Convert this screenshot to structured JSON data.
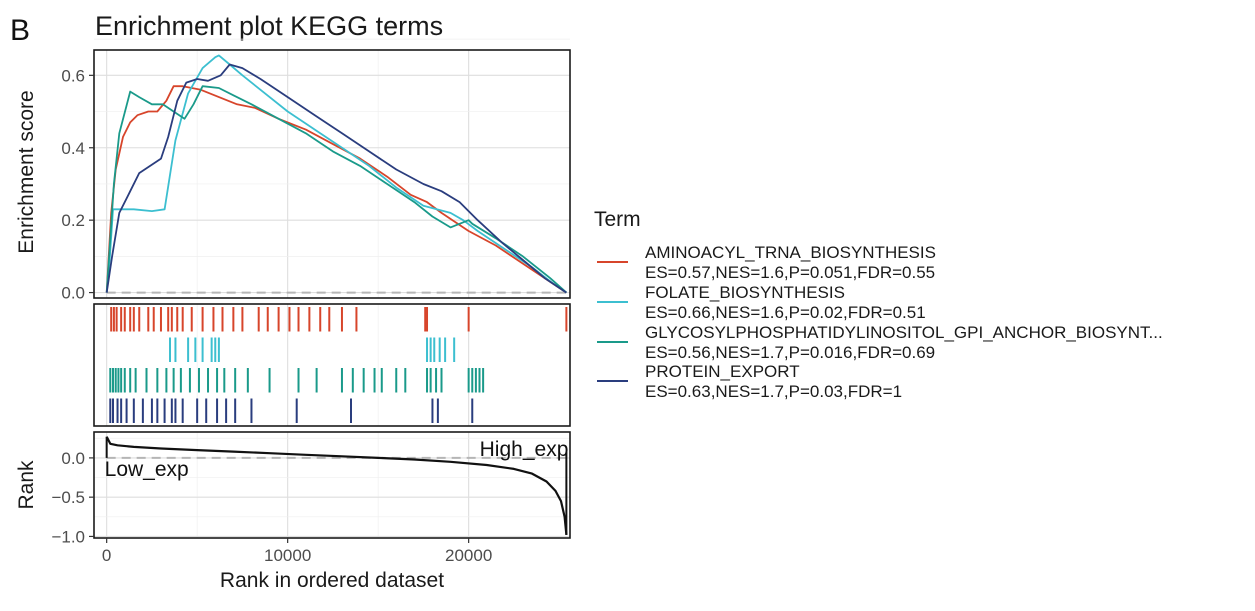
{
  "figure": {
    "panel_letter": "B",
    "title": "Enrichment plot KEGG terms"
  },
  "legend": {
    "title": "Term",
    "entries": [
      {
        "name": "AMINOACYL_TRNA_BIOSYNTHESIS",
        "stats": "ES=0.57,NES=1.6,P=0.051,FDR=0.55",
        "color": "#d7452b"
      },
      {
        "name": "FOLATE_BIOSYNTHESIS",
        "stats": "ES=0.66,NES=1.6,P=0.02,FDR=0.51",
        "color": "#3cbfd0"
      },
      {
        "name": "GLYCOSYLPHOSPHATIDYLINOSITOL_GPI_ANCHOR_BIOSYNT...",
        "stats": "ES=0.56,NES=1.7,P=0.016,FDR=0.69",
        "color": "#1a9a8a"
      },
      {
        "name": "PROTEIN_EXPORT",
        "stats": "ES=0.63,NES=1.7,P=0.03,FDR=1",
        "color": "#2a3d7e"
      }
    ]
  },
  "chart_data": {
    "type": "line",
    "xlabel": "Rank in ordered dataset",
    "xlim": [
      -700,
      25600
    ],
    "xticks": [
      0,
      10000,
      20000
    ],
    "xtick_labels": [
      "0",
      "10000",
      "20000"
    ],
    "grid": true,
    "legend_position": "right",
    "panels": {
      "enrichment": {
        "ylabel": "Enrichment score",
        "ylim": [
          -0.015,
          0.67
        ],
        "yticks": [
          0,
          0.2,
          0.4,
          0.6
        ],
        "ytick_labels": [
          "0.0",
          "0.2",
          "0.4",
          "0.6"
        ],
        "baseline": 0
      },
      "hits": {},
      "rank": {
        "ylabel": "Rank",
        "ylim": [
          -1.02,
          0.33
        ],
        "yticks": [
          0,
          -0.5,
          -1
        ],
        "ytick_labels": [
          "0.0",
          "−0.5",
          "−1.0"
        ],
        "baseline": 0,
        "annotations": [
          {
            "text": "Low_exp",
            "x": 0,
            "y": 0
          },
          {
            "text": "High_exp",
            "x": 25400,
            "y": 0
          }
        ]
      }
    },
    "series": [
      {
        "name": "AMINOACYL_TRNA_BIOSYNTHESIS",
        "color": "#d7452b",
        "x": [
          0,
          250,
          500,
          900,
          1300,
          1700,
          2300,
          2800,
          3300,
          3700,
          4200,
          5200,
          6200,
          7200,
          8200,
          9500,
          11000,
          12500,
          14000,
          15500,
          16800,
          17700,
          18500,
          20000,
          21500,
          23000,
          24500,
          25400
        ],
        "y": [
          0.0,
          0.22,
          0.34,
          0.43,
          0.47,
          0.49,
          0.5,
          0.5,
          0.53,
          0.57,
          0.57,
          0.56,
          0.54,
          0.52,
          0.51,
          0.48,
          0.45,
          0.41,
          0.37,
          0.32,
          0.27,
          0.25,
          0.22,
          0.17,
          0.13,
          0.08,
          0.03,
          0.0
        ],
        "hits": [
          250,
          400,
          550,
          800,
          1000,
          1300,
          1500,
          1800,
          2300,
          2600,
          3000,
          3400,
          3600,
          3900,
          4200,
          4700,
          5300,
          5900,
          6400,
          7000,
          7500,
          8400,
          8900,
          9500,
          10100,
          10600,
          11200,
          11800,
          12300,
          13000,
          13800,
          17600,
          17700,
          20000,
          25400
        ]
      },
      {
        "name": "FOLATE_BIOSYNTHESIS",
        "color": "#3cbfd0",
        "x": [
          0,
          180,
          350,
          700,
          1500,
          2500,
          3200,
          3800,
          4500,
          5300,
          6000,
          6200,
          6800,
          7500,
          8500,
          10000,
          11500,
          13000,
          14500,
          16000,
          17500,
          19000,
          19700,
          20500,
          22000,
          23500,
          24800,
          25400
        ],
        "y": [
          0.0,
          0.1,
          0.23,
          0.23,
          0.23,
          0.225,
          0.23,
          0.42,
          0.55,
          0.62,
          0.65,
          0.655,
          0.63,
          0.6,
          0.56,
          0.5,
          0.45,
          0.4,
          0.35,
          0.29,
          0.24,
          0.22,
          0.2,
          0.17,
          0.12,
          0.07,
          0.02,
          0.0
        ],
        "hits": [
          3500,
          3800,
          4500,
          4900,
          5300,
          5800,
          6000,
          6200,
          17700,
          17900,
          18100,
          18400,
          18700,
          19200
        ]
      },
      {
        "name": "GLYCOSYLPHOSPHATIDYLINOSITOL_GPI_ANCHOR_BIOSYNT...",
        "color": "#1a9a8a",
        "x": [
          0,
          200,
          400,
          700,
          1300,
          1800,
          2500,
          3100,
          3700,
          4300,
          4800,
          5300,
          6200,
          7000,
          8000,
          9500,
          11000,
          12500,
          14000,
          15500,
          17000,
          18000,
          19000,
          20000,
          20200,
          21500,
          23000,
          24500,
          25400
        ],
        "y": [
          0.0,
          0.15,
          0.3,
          0.44,
          0.555,
          0.54,
          0.52,
          0.52,
          0.5,
          0.48,
          0.52,
          0.57,
          0.565,
          0.545,
          0.52,
          0.48,
          0.44,
          0.39,
          0.35,
          0.3,
          0.25,
          0.21,
          0.18,
          0.2,
          0.19,
          0.15,
          0.1,
          0.04,
          0.0
        ],
        "hits": [
          200,
          350,
          500,
          650,
          800,
          1000,
          1300,
          1600,
          2200,
          2800,
          3300,
          3700,
          4100,
          4600,
          5100,
          5600,
          6100,
          6500,
          7100,
          7800,
          9000,
          10600,
          11600,
          13000,
          13600,
          14200,
          14800,
          15200,
          16000,
          16500,
          17700,
          17900,
          18200,
          18500,
          20000,
          20200,
          20400,
          20600,
          20800
        ]
      },
      {
        "name": "PROTEIN_EXPORT",
        "color": "#2a3d7e",
        "x": [
          0,
          300,
          700,
          1300,
          1800,
          2400,
          3000,
          3400,
          3900,
          4400,
          5000,
          5600,
          6300,
          6800,
          7500,
          8500,
          10000,
          11500,
          13000,
          14500,
          16000,
          17500,
          18500,
          19500,
          20500,
          21800,
          23000,
          24200,
          25400
        ],
        "y": [
          0.0,
          0.1,
          0.22,
          0.28,
          0.33,
          0.35,
          0.37,
          0.43,
          0.53,
          0.58,
          0.59,
          0.585,
          0.6,
          0.63,
          0.62,
          0.59,
          0.54,
          0.49,
          0.44,
          0.39,
          0.34,
          0.3,
          0.28,
          0.25,
          0.2,
          0.14,
          0.09,
          0.04,
          0.0
        ],
        "hits": [
          200,
          350,
          600,
          800,
          1100,
          1500,
          2000,
          2500,
          2800,
          3200,
          3600,
          3800,
          4200,
          5000,
          5500,
          6100,
          6600,
          7100,
          8000,
          10500,
          13500,
          18000,
          18300,
          20200
        ]
      }
    ],
    "rank_metric": {
      "x": [
        0,
        200,
        600,
        1500,
        3000,
        5000,
        7000,
        9000,
        11000,
        13000,
        15000,
        17000,
        19000,
        21000,
        22500,
        23500,
        24300,
        24800,
        25100,
        25300,
        25400
      ],
      "y": [
        0.27,
        0.18,
        0.16,
        0.14,
        0.12,
        0.1,
        0.08,
        0.06,
        0.04,
        0.02,
        0.0,
        -0.02,
        -0.05,
        -0.09,
        -0.14,
        -0.2,
        -0.3,
        -0.42,
        -0.55,
        -0.75,
        -0.98
      ]
    }
  }
}
